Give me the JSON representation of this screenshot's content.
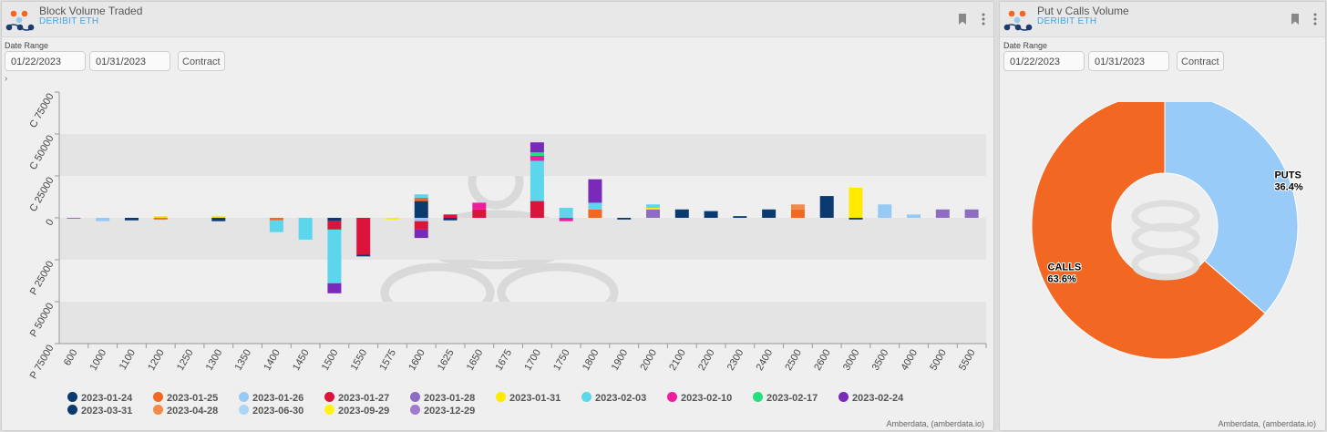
{
  "left_panel": {
    "title": "Block Volume Traded",
    "subtitle": "DERIBIT ETH",
    "date_range_label": "Date Range",
    "start_date": "01/22/2023",
    "end_date": "01/31/2023",
    "contract_label": "Contract",
    "expand_icon": "›",
    "credit": "Amberdata, (amberdata.io)"
  },
  "right_panel": {
    "title": "Put v Calls Volume",
    "subtitle": "DERIBIT ETH",
    "date_range_label": "Date Range",
    "start_date": "01/22/2023",
    "end_date": "01/31/2023",
    "contract_label": "Contract",
    "credit": "Amberdata, (amberdata.io)"
  },
  "chart_data": [
    {
      "type": "bar",
      "stacked": true,
      "title": "Block Volume Traded",
      "xlabel": "",
      "ylabel": "",
      "ylim": [
        -75000,
        75000
      ],
      "ytick_values": [
        75000,
        50000,
        25000,
        0,
        -25000,
        -50000,
        -75000
      ],
      "ytick_labels": [
        "C 75000",
        "C 50000",
        "C 25000",
        "0",
        "P 25000",
        "P 50000",
        "P 75000"
      ],
      "grid": "alternating horizontal bands",
      "legend_position": "bottom",
      "categories": [
        "600",
        "1000",
        "1100",
        "1200",
        "1250",
        "1300",
        "1350",
        "1400",
        "1450",
        "1500",
        "1550",
        "1575",
        "1600",
        "1625",
        "1650",
        "1675",
        "1700",
        "1750",
        "1800",
        "1900",
        "2000",
        "2100",
        "2200",
        "2300",
        "2400",
        "2500",
        "2600",
        "3000",
        "3500",
        "4000",
        "5000",
        "5500"
      ],
      "series": [
        {
          "name": "2023-01-24",
          "color": "#0b3a70",
          "values": {
            "1100": -1500,
            "1300": -2000,
            "1500": -2000,
            "1600": 10000,
            "1625": -1500,
            "1900": -1000,
            "2100": 5000,
            "2200": 4000,
            "2300": 1000,
            "2400": 5000,
            "2600": 13000,
            "3000": -1000
          }
        },
        {
          "name": "2023-01-25",
          "color": "#f26722",
          "values": {
            "1200": -1000,
            "1400": -1500,
            "1600": 2000,
            "1800": 5000,
            "2500": 5000
          }
        },
        {
          "name": "2023-01-26",
          "color": "#97c9f5",
          "values": {
            "1000": -2000,
            "1600": -2000,
            "3500": 8000,
            "4000": 2000
          }
        },
        {
          "name": "2023-01-27",
          "color": "#dc143c",
          "values": {
            "1500": -5000,
            "1550": -22000,
            "1600": -5000,
            "1625": 2000,
            "1650": 5000,
            "1700": 10000
          }
        },
        {
          "name": "2023-01-28",
          "color": "#8f6cc4",
          "values": {
            "600": -500,
            "2000": 5000,
            "5000": 5000,
            "5500": 5000
          }
        },
        {
          "name": "2023-01-31",
          "color": "#ffea00",
          "values": {
            "1200": 1000,
            "1300": 1000,
            "1575": -1000,
            "2000": 1000,
            "3000": 18000
          }
        },
        {
          "name": "2023-02-03",
          "color": "#5bd6ec",
          "values": {
            "1400": -7000,
            "1450": -13000,
            "1500": -32000,
            "1600": 2000,
            "1700": 24000,
            "1750": 6000,
            "1800": 4000,
            "2000": 2000
          }
        },
        {
          "name": "2023-02-10",
          "color": "#ee1ca0",
          "values": {
            "1650": 4000,
            "1700": 3000,
            "1750": -2000
          }
        },
        {
          "name": "2023-02-17",
          "color": "#23e07a",
          "values": {
            "1700": 2000
          }
        },
        {
          "name": "2023-02-24",
          "color": "#7a2ab8",
          "values": {
            "1500": -6000,
            "1600": -5000,
            "1700": 6000,
            "1800": 14000
          }
        },
        {
          "name": "2023-03-31",
          "color": "#0b3a70",
          "values": {
            "1550": -1000
          }
        },
        {
          "name": "2023-04-28",
          "color": "#f08b4c",
          "values": {
            "2500": 3000
          }
        },
        {
          "name": "2023-06-30",
          "color": "#acd5f7",
          "values": {}
        },
        {
          "name": "2023-09-29",
          "color": "#fff314",
          "values": {}
        },
        {
          "name": "2023-12-29",
          "color": "#a07acc",
          "values": {}
        }
      ]
    },
    {
      "type": "pie",
      "title": "Put v Calls Volume",
      "donut": true,
      "slices": [
        {
          "label": "PUTS",
          "value": 36.4,
          "display": "36.4%",
          "color": "#99cbf8"
        },
        {
          "label": "CALLS",
          "value": 63.6,
          "display": "63.6%",
          "color": "#f26722"
        }
      ]
    }
  ],
  "icons": {
    "logo": "amberdata-logo",
    "bookmark": "bookmark-icon",
    "menu": "kebab-menu-icon"
  }
}
